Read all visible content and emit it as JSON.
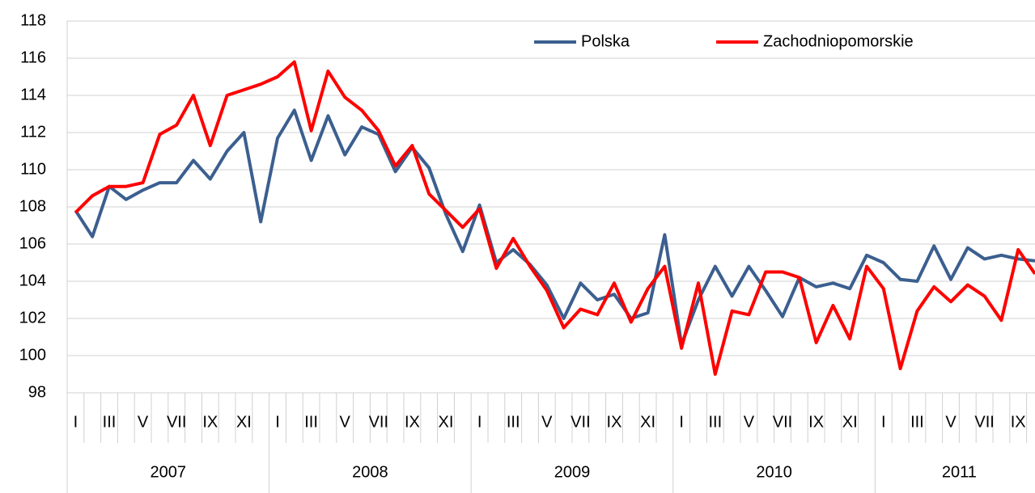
{
  "chart_data": {
    "type": "line",
    "categories": [
      "I",
      null,
      "III",
      null,
      "V",
      null,
      "VII",
      null,
      "IX",
      null,
      "XI",
      null,
      "I",
      null,
      "III",
      null,
      "V",
      null,
      "VII",
      null,
      "IX",
      null,
      "XI",
      null,
      "I",
      null,
      "III",
      null,
      "V",
      null,
      "VII",
      null,
      "IX",
      null,
      "XI",
      null,
      "I",
      null,
      "III",
      null,
      "V",
      null,
      "VII",
      null,
      "IX",
      null,
      "XI",
      null,
      "I",
      null,
      "III",
      null,
      "V",
      null,
      "VII",
      null,
      "IX",
      null
    ],
    "years": [
      "2007",
      "2008",
      "2009",
      "2010",
      "2011"
    ],
    "series": [
      {
        "name": "Polska",
        "color": "#3b5f8f",
        "values": [
          107.8,
          106.4,
          109.1,
          108.4,
          108.9,
          109.3,
          109.3,
          110.5,
          109.5,
          111.0,
          112.0,
          107.2,
          111.7,
          113.2,
          110.5,
          112.9,
          110.8,
          112.3,
          111.9,
          109.9,
          111.2,
          110.1,
          107.6,
          105.6,
          108.1,
          105.0,
          105.7,
          104.9,
          103.8,
          102.0,
          103.9,
          103.0,
          103.3,
          102.0,
          102.3,
          106.5,
          100.6,
          103.0,
          104.8,
          103.2,
          104.8,
          103.5,
          102.1,
          104.2,
          103.7,
          103.9,
          103.6,
          105.4,
          105.0,
          104.1,
          104.0,
          105.9,
          104.1,
          105.8,
          105.2,
          105.4,
          105.2,
          105.1
        ]
      },
      {
        "name": "Zachodniopomorskie",
        "color": "#ff0000",
        "values": [
          107.7,
          108.6,
          109.1,
          109.1,
          109.3,
          111.9,
          112.4,
          114.0,
          111.3,
          114.0,
          114.3,
          114.6,
          115.0,
          115.8,
          112.1,
          115.3,
          113.9,
          113.2,
          112.1,
          110.2,
          111.3,
          108.7,
          107.8,
          106.9,
          107.9,
          104.7,
          106.3,
          104.8,
          103.5,
          101.5,
          102.5,
          102.2,
          103.9,
          101.8,
          103.6,
          104.8,
          100.4,
          103.9,
          99.0,
          102.4,
          102.2,
          104.5,
          104.5,
          104.2,
          100.7,
          102.7,
          100.9,
          104.8,
          103.6,
          99.3,
          102.4,
          103.7,
          102.9,
          103.8,
          103.2,
          101.9,
          105.7,
          104.4
        ]
      }
    ],
    "ylim": [
      98,
      118
    ],
    "yticks": [
      98,
      100,
      102,
      104,
      106,
      108,
      110,
      112,
      114,
      116,
      118
    ],
    "grid": true,
    "legend": "upper right"
  }
}
